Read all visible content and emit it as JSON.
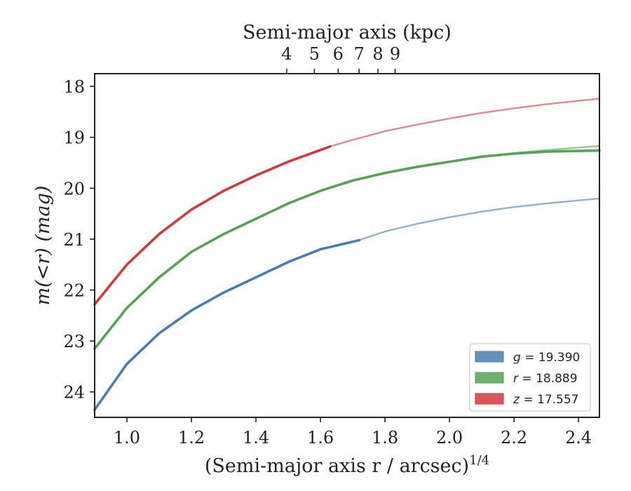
{
  "chart_data": {
    "type": "line",
    "title": "",
    "xlabel": "(Semi-major axis r / arcsec)",
    "xlabel_exponent": "1/4",
    "top_xlabel": "Semi-major axis (kpc)",
    "ylabel": "m(<r) (mag)",
    "xlim": [
      0.9,
      2.465
    ],
    "ylim": [
      24.5,
      17.75
    ],
    "y_inverted": true,
    "top_axis_kpc_per_arcsec": 0.8,
    "x_ticks": [
      "1.0",
      "1.2",
      "1.4",
      "1.6",
      "1.8",
      "2.0",
      "2.2",
      "2.4"
    ],
    "x_tick_values": [
      1.0,
      1.2,
      1.4,
      1.6,
      1.8,
      2.0,
      2.2,
      2.4
    ],
    "y_ticks": [
      "18",
      "19",
      "20",
      "21",
      "22",
      "23",
      "24"
    ],
    "y_tick_values": [
      18,
      19,
      20,
      21,
      22,
      23,
      24
    ],
    "top_ticks": [
      "4",
      "5",
      "6",
      "7",
      "8",
      "9"
    ],
    "top_tick_values": [
      4,
      5,
      6,
      7,
      8,
      9
    ],
    "legend_placement": "lower-right",
    "grid": false,
    "series": [
      {
        "name": "g = 19.390",
        "band": "g",
        "mag_label": "19.390",
        "color": "#4a7cb0",
        "data_extent_x": 1.72,
        "x": [
          0.9,
          1.0,
          1.1,
          1.2,
          1.3,
          1.4,
          1.5,
          1.6,
          1.7,
          1.72
        ],
        "y": [
          24.35,
          23.45,
          22.85,
          22.4,
          22.05,
          21.75,
          21.45,
          21.2,
          21.05,
          21.02
        ],
        "model_x": [
          1.72,
          1.8,
          1.9,
          2.0,
          2.1,
          2.2,
          2.3,
          2.465
        ],
        "model_y": [
          21.02,
          20.85,
          20.7,
          20.57,
          20.46,
          20.37,
          20.3,
          20.2
        ]
      },
      {
        "name": "r = 18.889",
        "band": "r",
        "mag_label": "18.889",
        "color": "#55a355",
        "data_extent_x": 2.465,
        "x": [
          0.9,
          1.0,
          1.1,
          1.2,
          1.3,
          1.4,
          1.5,
          1.6,
          1.7,
          1.8,
          1.9,
          2.0,
          2.1,
          2.2,
          2.3,
          2.465
        ],
        "y": [
          23.15,
          22.35,
          21.75,
          21.25,
          20.9,
          20.6,
          20.3,
          20.05,
          19.85,
          19.7,
          19.58,
          19.48,
          19.38,
          19.32,
          19.28,
          19.26
        ],
        "model_x": [
          1.9,
          2.0,
          2.1,
          2.2,
          2.3,
          2.465
        ],
        "model_y": [
          19.58,
          19.48,
          19.39,
          19.31,
          19.25,
          19.17
        ]
      },
      {
        "name": "z = 17.557",
        "band": "z",
        "mag_label": "17.557",
        "color": "#d03a3e",
        "data_extent_x": 1.63,
        "x": [
          0.9,
          1.0,
          1.1,
          1.2,
          1.3,
          1.4,
          1.5,
          1.63
        ],
        "y": [
          22.28,
          21.5,
          20.9,
          20.42,
          20.05,
          19.75,
          19.48,
          19.18
        ],
        "model_x": [
          1.63,
          1.7,
          1.8,
          1.9,
          2.0,
          2.1,
          2.2,
          2.3,
          2.465
        ],
        "model_y": [
          19.18,
          19.05,
          18.88,
          18.75,
          18.63,
          18.52,
          18.43,
          18.35,
          18.24
        ]
      }
    ]
  }
}
